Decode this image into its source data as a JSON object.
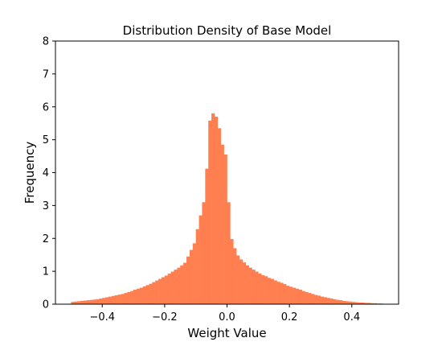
{
  "chart_data": {
    "type": "bar",
    "title": "Distribution Density of Base Model",
    "xlabel": "Weight Value",
    "ylabel": "Frequency",
    "xlim": [
      -0.55,
      0.55
    ],
    "ylim": [
      0,
      8
    ],
    "xticks": [
      -0.4,
      -0.2,
      0.0,
      0.2,
      0.4
    ],
    "xtick_labels": [
      "−0.4",
      "−0.2",
      "0.0",
      "0.2",
      "0.4"
    ],
    "yticks": [
      0,
      1,
      2,
      3,
      4,
      5,
      6,
      7,
      8
    ],
    "ytick_labels": [
      "0",
      "1",
      "2",
      "3",
      "4",
      "5",
      "6",
      "7",
      "8"
    ],
    "grid": false,
    "bar_color": "#ff7f50",
    "bin_start": -0.5,
    "bin_width": 0.01,
    "values": [
      0.07,
      0.08,
      0.09,
      0.1,
      0.11,
      0.12,
      0.13,
      0.14,
      0.15,
      0.17,
      0.19,
      0.21,
      0.23,
      0.25,
      0.27,
      0.29,
      0.31,
      0.34,
      0.37,
      0.4,
      0.44,
      0.47,
      0.5,
      0.54,
      0.58,
      0.62,
      0.67,
      0.72,
      0.77,
      0.82,
      0.87,
      0.93,
      0.99,
      1.05,
      1.11,
      1.18,
      1.26,
      1.45,
      1.65,
      1.85,
      2.28,
      2.7,
      3.1,
      4.12,
      5.58,
      5.8,
      5.7,
      5.35,
      4.85,
      4.55,
      3.1,
      1.98,
      1.7,
      1.48,
      1.36,
      1.27,
      1.18,
      1.11,
      1.05,
      0.99,
      0.93,
      0.88,
      0.85,
      0.8,
      0.77,
      0.72,
      0.68,
      0.65,
      0.61,
      0.56,
      0.53,
      0.5,
      0.47,
      0.44,
      0.4,
      0.37,
      0.34,
      0.31,
      0.28,
      0.26,
      0.23,
      0.21,
      0.19,
      0.17,
      0.15,
      0.13,
      0.12,
      0.1,
      0.09,
      0.08,
      0.07,
      0.06,
      0.05,
      0.05,
      0.04,
      0.04,
      0.03,
      0.03,
      0.02,
      0.02
    ]
  }
}
